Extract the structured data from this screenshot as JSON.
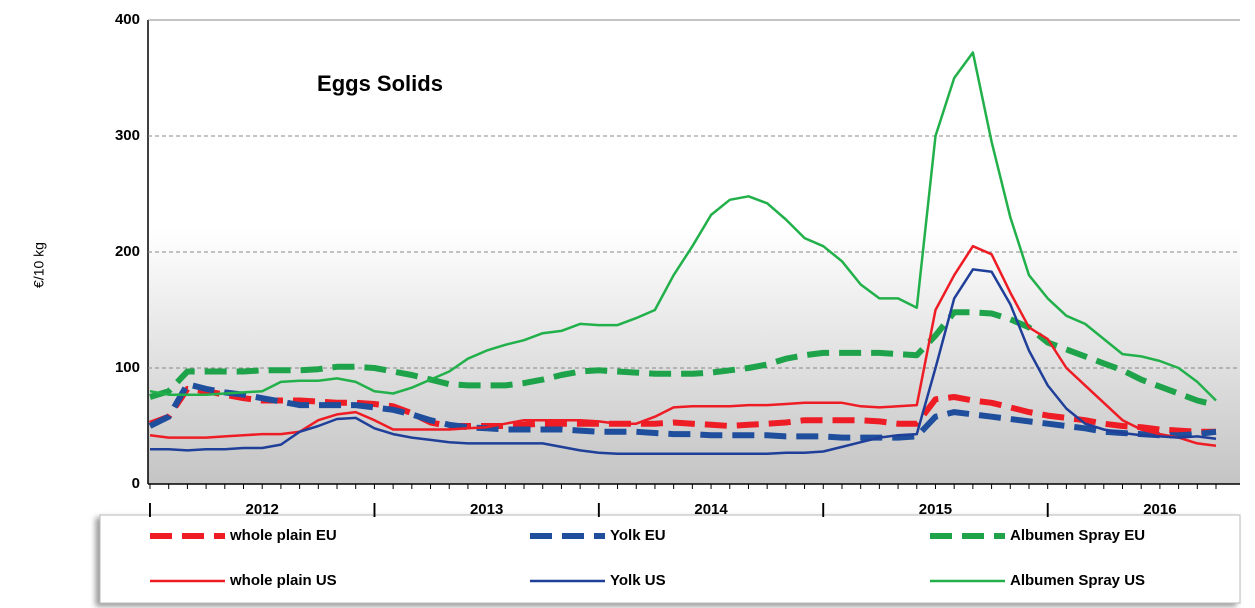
{
  "chart_data": {
    "type": "line",
    "title": "Eggs Solids",
    "y_label": "€/10 kg",
    "categories": [
      "|",
      null,
      null,
      null,
      null,
      null,
      "2012",
      null,
      null,
      null,
      null,
      null,
      "|",
      null,
      null,
      null,
      null,
      null,
      "2013",
      null,
      null,
      null,
      null,
      null,
      "|",
      null,
      null,
      null,
      null,
      null,
      "2014",
      null,
      null,
      null,
      null,
      null,
      "|",
      null,
      null,
      null,
      null,
      null,
      "2015",
      null,
      null,
      null,
      null,
      null,
      "|",
      null,
      null,
      null,
      null,
      null,
      "2016",
      null,
      null,
      null
    ],
    "ylim": [
      0,
      400
    ],
    "yticks": [
      0,
      100,
      200,
      300,
      400
    ],
    "grid": true,
    "series": [
      {
        "name": "whole plain EU",
        "color": "#ee1c24",
        "dashed": true,
        "values": [
          52,
          58,
          82,
          80,
          77,
          74,
          72,
          72,
          72,
          71,
          70,
          70,
          69,
          67,
          61,
          53,
          50,
          50,
          50,
          50,
          51,
          52,
          52,
          52,
          52,
          52,
          52,
          52,
          53,
          52,
          51,
          50,
          51,
          52,
          53,
          55,
          55,
          55,
          55,
          54,
          52,
          52,
          73,
          75,
          72,
          70,
          66,
          62,
          59,
          57,
          55,
          52,
          50,
          49,
          47,
          46,
          45,
          45
        ]
      },
      {
        "name": "Yolk EU",
        "color": "#1f4e9c",
        "dashed": true,
        "values": [
          50,
          58,
          86,
          82,
          79,
          77,
          74,
          71,
          68,
          68,
          68,
          68,
          66,
          64,
          60,
          55,
          51,
          49,
          48,
          47,
          47,
          47,
          47,
          46,
          45,
          45,
          45,
          44,
          43,
          43,
          42,
          42,
          42,
          42,
          41,
          41,
          41,
          40,
          40,
          40,
          40,
          41,
          58,
          62,
          60,
          58,
          56,
          54,
          52,
          50,
          48,
          45,
          44,
          43,
          42,
          42,
          43,
          45
        ]
      },
      {
        "name": "Albumen Spray EU",
        "color": "#1fa34a",
        "dashed": true,
        "values": [
          75,
          80,
          97,
          97,
          97,
          97,
          98,
          98,
          98,
          99,
          101,
          101,
          100,
          97,
          94,
          90,
          86,
          85,
          85,
          85,
          87,
          90,
          94,
          97,
          98,
          97,
          96,
          95,
          95,
          95,
          96,
          98,
          100,
          103,
          108,
          111,
          113,
          113,
          113,
          113,
          112,
          111,
          128,
          148,
          148,
          147,
          142,
          135,
          122,
          116,
          110,
          104,
          98,
          90,
          84,
          78,
          72,
          68
        ]
      },
      {
        "name": "whole plain US",
        "color": "#ee1c24",
        "dashed": false,
        "values": [
          42,
          40,
          40,
          40,
          41,
          42,
          43,
          43,
          45,
          55,
          60,
          62,
          55,
          47,
          47,
          47,
          47,
          48,
          49,
          52,
          55,
          55,
          55,
          55,
          54,
          52,
          52,
          58,
          66,
          67,
          67,
          67,
          68,
          68,
          69,
          70,
          70,
          70,
          67,
          66,
          67,
          68,
          150,
          180,
          205,
          198,
          165,
          135,
          125,
          100,
          85,
          70,
          55,
          47,
          43,
          40,
          35,
          33
        ]
      },
      {
        "name": "Yolk US",
        "color": "#1f3f99",
        "dashed": false,
        "values": [
          30,
          30,
          29,
          30,
          30,
          31,
          31,
          34,
          45,
          50,
          56,
          57,
          48,
          43,
          40,
          38,
          36,
          35,
          35,
          35,
          35,
          35,
          32,
          29,
          27,
          26,
          26,
          26,
          26,
          26,
          26,
          26,
          26,
          26,
          27,
          27,
          28,
          32,
          36,
          40,
          42,
          43,
          100,
          160,
          185,
          183,
          155,
          115,
          85,
          65,
          52,
          47,
          44,
          42,
          41,
          40,
          41,
          39
        ]
      },
      {
        "name": "Albumen Spray US",
        "color": "#22b04a",
        "dashed": false,
        "values": [
          80,
          77,
          77,
          77,
          78,
          79,
          80,
          88,
          89,
          89,
          91,
          88,
          80,
          78,
          83,
          90,
          97,
          108,
          115,
          120,
          124,
          130,
          132,
          138,
          137,
          137,
          143,
          150,
          180,
          205,
          232,
          245,
          248,
          242,
          228,
          212,
          205,
          192,
          172,
          160,
          160,
          152,
          300,
          350,
          372,
          295,
          230,
          180,
          160,
          145,
          138,
          125,
          112,
          110,
          106,
          100,
          88,
          72
        ]
      }
    ]
  }
}
